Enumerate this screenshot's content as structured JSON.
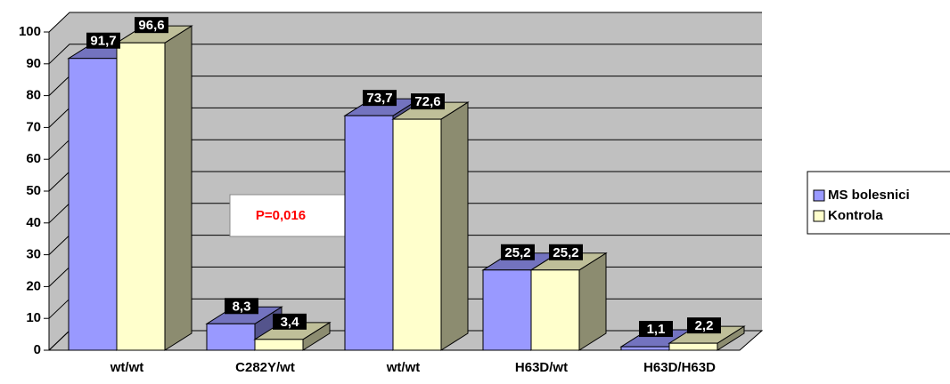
{
  "chart_data": {
    "type": "bar3d",
    "categories": [
      "wt/wt",
      "C282Y/wt",
      "wt/wt",
      "H63D/wt",
      "H63D/H63D"
    ],
    "series": [
      {
        "name": "MS bolesnici",
        "color": "#9999ff",
        "values": [
          91.7,
          8.3,
          73.7,
          25.2,
          1.1
        ],
        "value_labels": [
          "91,7",
          "8,3",
          "73,7",
          "25,2",
          "1,1"
        ]
      },
      {
        "name": "Kontrola",
        "color": "#ffffcc",
        "values": [
          96.6,
          3.4,
          72.6,
          25.2,
          2.2
        ],
        "value_labels": [
          "96,6",
          "3,4",
          "72,6",
          "25,2",
          "2,2"
        ]
      }
    ],
    "ylim": [
      0,
      100
    ],
    "yticks": [
      0,
      10,
      20,
      30,
      40,
      50,
      60,
      70,
      80,
      90,
      100
    ],
    "grid": true,
    "annotation": "P=0,016",
    "legend": "right"
  }
}
